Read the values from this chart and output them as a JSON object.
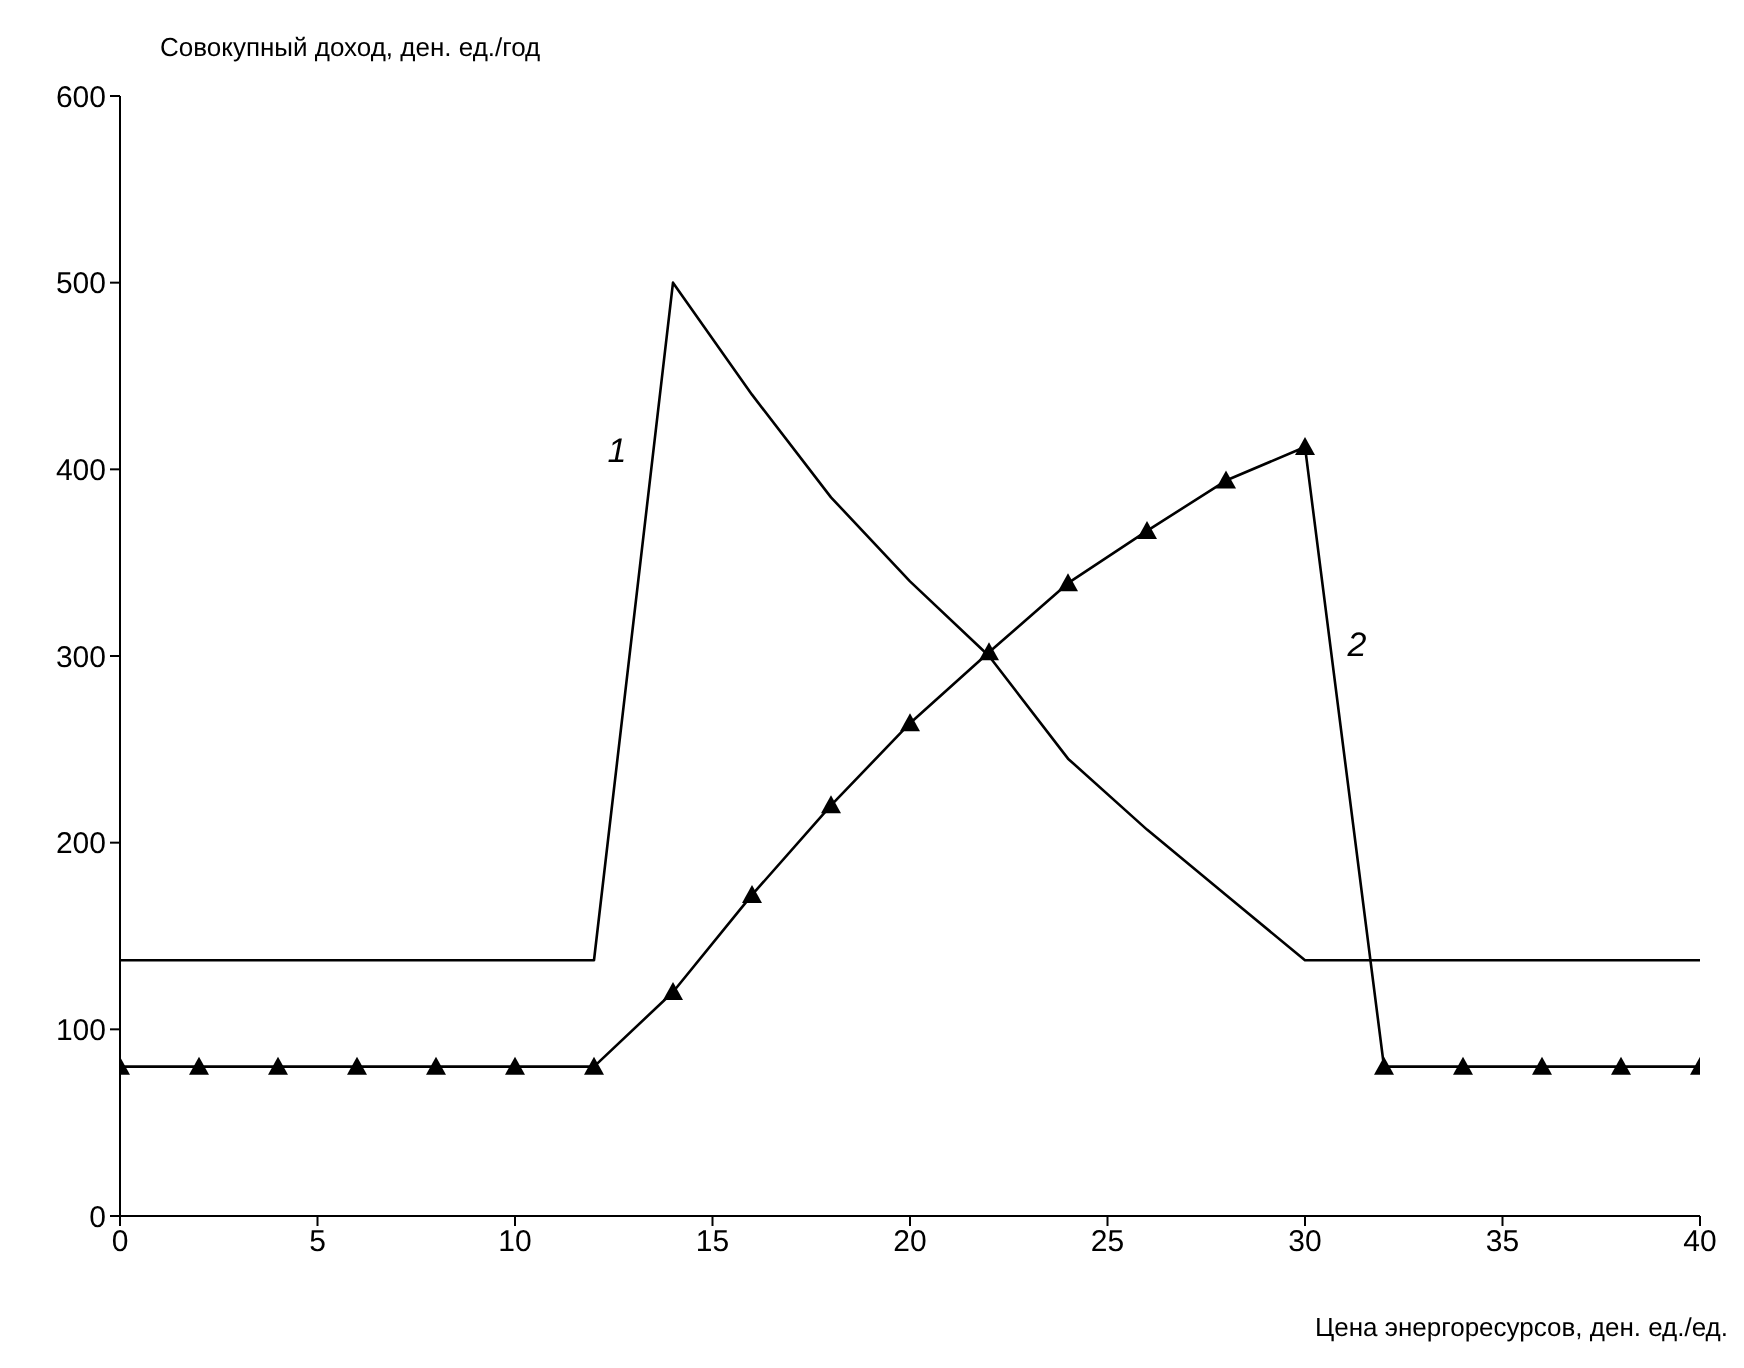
{
  "chart_data": {
    "type": "line",
    "xlabel": "Цена энергоресурсов, ден. ед./ед.",
    "ylabel": "Совокупный доход, ден. ед./год",
    "xlim": [
      0,
      40
    ],
    "xticks": [
      0,
      5,
      10,
      15,
      20,
      25,
      30,
      35,
      40
    ],
    "ylim": [
      0,
      600
    ],
    "yticks": [
      0,
      100,
      200,
      300,
      400,
      500,
      600
    ],
    "grid": false,
    "legend": false,
    "series": [
      {
        "name": "1",
        "color": "#000000",
        "marker": "none",
        "x": [
          0,
          12,
          14,
          16,
          18,
          20,
          22,
          24,
          26,
          28,
          30,
          40
        ],
        "values": [
          137,
          137,
          500,
          440,
          385,
          340,
          300,
          245,
          207,
          172,
          137,
          137
        ]
      },
      {
        "name": "2",
        "color": "#000000",
        "marker": "triangle",
        "x": [
          0,
          2,
          4,
          6,
          8,
          10,
          12,
          14,
          16,
          18,
          20,
          22,
          24,
          26,
          28,
          30,
          32,
          34,
          36,
          38,
          40
        ],
        "values": [
          80,
          80,
          80,
          80,
          80,
          80,
          80,
          120,
          172,
          220,
          264,
          302,
          339,
          367,
          394,
          412,
          80,
          80,
          80,
          80,
          80
        ]
      }
    ]
  }
}
